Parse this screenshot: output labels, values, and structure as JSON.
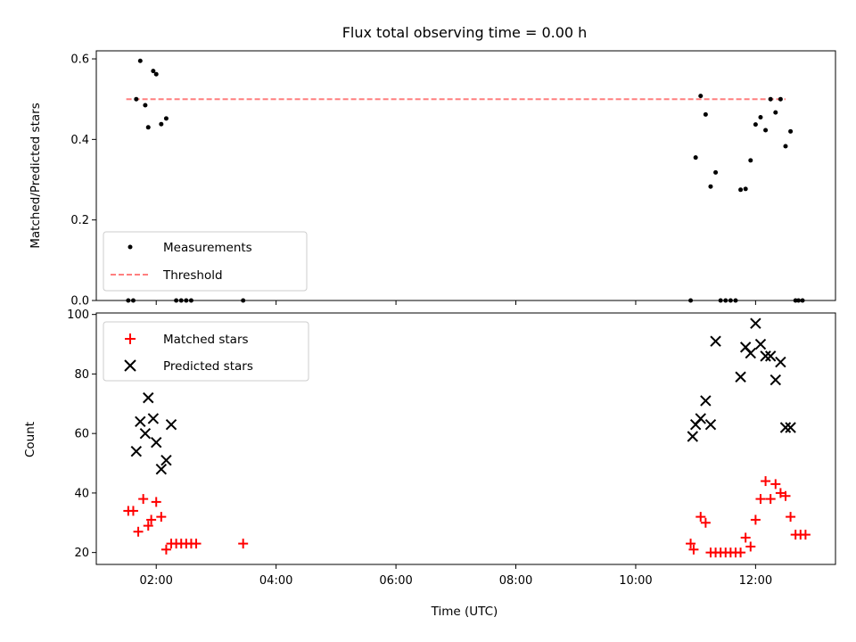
{
  "chart_data": [
    {
      "type": "scatter",
      "title": "Flux total observing time = 0.00 h",
      "xlabel": "",
      "ylabel": "Matched/Predicted stars",
      "xlim": [
        "01:00",
        "13:20"
      ],
      "ylim": [
        0,
        0.62
      ],
      "x_ticks": [
        "02:00",
        "04:00",
        "06:00",
        "08:00",
        "10:00",
        "12:00"
      ],
      "y_ticks": [
        "0.0",
        "0.2",
        "0.4",
        "0.6"
      ],
      "legend": {
        "position": "lower-left",
        "entries": [
          "Measurements",
          "Threshold"
        ]
      },
      "threshold": {
        "value": 0.5,
        "x": [
          "01:30",
          "12:30"
        ],
        "color": "#ff7f7f"
      },
      "series": [
        {
          "name": "Measurements",
          "color": "#000000",
          "x": [
            "01:32",
            "01:37",
            "01:40",
            "01:44",
            "01:49",
            "01:52",
            "01:57",
            "02:00",
            "02:05",
            "02:10",
            "02:20",
            "02:25",
            "02:30",
            "02:35",
            "03:27",
            "10:55",
            "11:00",
            "11:05",
            "11:10",
            "11:15",
            "11:20",
            "11:25",
            "11:30",
            "11:35",
            "11:40",
            "11:45",
            "11:50",
            "11:55",
            "12:00",
            "12:05",
            "12:10",
            "12:15",
            "12:20",
            "12:25",
            "12:30",
            "12:35",
            "12:40",
            "12:43",
            "12:47"
          ],
          "y": [
            0,
            0,
            0.5,
            0.595,
            0.485,
            0.43,
            0.57,
            0.562,
            0.438,
            0.452,
            0,
            0,
            0,
            0,
            0,
            0,
            0.355,
            0.508,
            0.462,
            0.283,
            0.318,
            0,
            0,
            0,
            0,
            0.275,
            0.277,
            0.348,
            0.437,
            0.455,
            0.423,
            0.5,
            0.467,
            0.5,
            0.383,
            0.42,
            0,
            0,
            0
          ]
        }
      ]
    },
    {
      "type": "scatter",
      "title": "",
      "xlabel": "Time (UTC)",
      "ylabel": "Count",
      "xlim": [
        "01:00",
        "13:20"
      ],
      "ylim": [
        16,
        100.5
      ],
      "x_ticks": [
        "02:00",
        "04:00",
        "06:00",
        "08:00",
        "10:00",
        "12:00"
      ],
      "y_ticks": [
        "20",
        "40",
        "60",
        "80",
        "100"
      ],
      "legend": {
        "position": "upper-left",
        "entries": [
          "Matched stars",
          "Predicted stars"
        ]
      },
      "series": [
        {
          "name": "Matched stars",
          "color": "#ff0000",
          "marker": "plus",
          "x": [
            "01:32",
            "01:37",
            "01:42",
            "01:47",
            "01:52",
            "01:55",
            "02:00",
            "02:05",
            "02:10",
            "02:15",
            "02:20",
            "02:25",
            "02:30",
            "02:35",
            "02:40",
            "03:27",
            "10:55",
            "10:58",
            "11:05",
            "11:10",
            "11:15",
            "11:20",
            "11:25",
            "11:30",
            "11:35",
            "11:40",
            "11:45",
            "11:50",
            "11:55",
            "12:00",
            "12:05",
            "12:10",
            "12:15",
            "12:20",
            "12:25",
            "12:30",
            "12:35",
            "12:40",
            "12:45",
            "12:50"
          ],
          "y": [
            34,
            34,
            27,
            38,
            29,
            31,
            37,
            32,
            21,
            23,
            23,
            23,
            23,
            23,
            23,
            23,
            23,
            21,
            32,
            30,
            20,
            20,
            20,
            20,
            20,
            20,
            20,
            25,
            22,
            31,
            38,
            44,
            38,
            43,
            40,
            39,
            32,
            26,
            26,
            26
          ]
        },
        {
          "name": "Predicted stars",
          "color": "#000000",
          "marker": "x",
          "x": [
            "01:40",
            "01:44",
            "01:49",
            "01:52",
            "01:57",
            "02:00",
            "02:05",
            "02:10",
            "02:15",
            "10:57",
            "11:00",
            "11:05",
            "11:10",
            "11:15",
            "11:20",
            "11:45",
            "11:50",
            "11:55",
            "12:00",
            "12:05",
            "12:10",
            "12:15",
            "12:20",
            "12:25",
            "12:30",
            "12:35"
          ],
          "y": [
            54,
            64,
            60,
            72,
            65,
            57,
            48,
            51,
            63,
            59,
            63,
            65,
            71,
            63,
            91,
            79,
            89,
            87,
            97,
            90,
            86,
            86,
            78,
            84,
            62,
            62
          ]
        }
      ]
    }
  ]
}
